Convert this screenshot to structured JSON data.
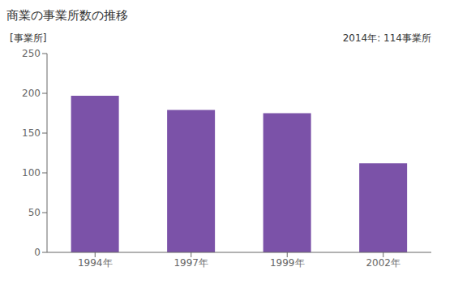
{
  "chart_data": {
    "type": "bar",
    "title": "商業の事業所数の推移",
    "ylabel": "[事業所]",
    "annotation": "2014年: 114事業所",
    "categories": [
      "1994年",
      "1997年",
      "1999年",
      "2002年"
    ],
    "values": [
      197,
      179,
      175,
      112
    ],
    "color": "#7b52a8",
    "ylim": [
      0,
      250
    ],
    "yticks": [
      0,
      50,
      100,
      150,
      200,
      250
    ],
    "grid": false
  }
}
